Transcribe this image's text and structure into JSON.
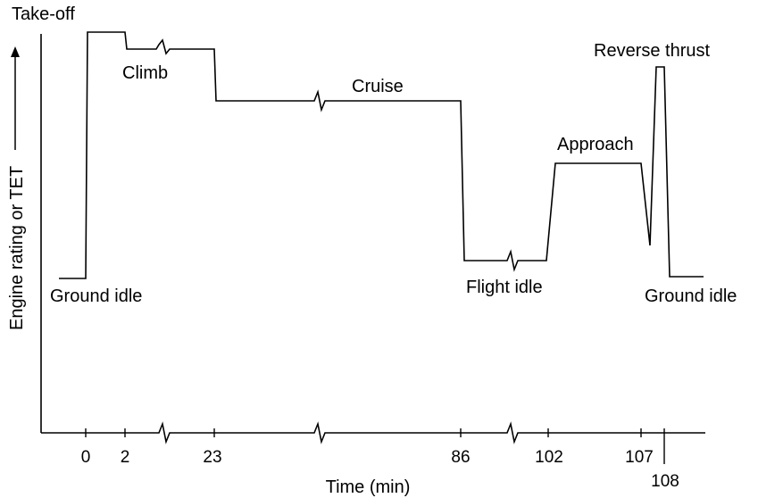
{
  "chart_data": {
    "type": "line",
    "title": "",
    "xlabel": "Time (min)",
    "ylabel": "Engine rating or TET",
    "x_ticks": [
      "0",
      "2",
      "23",
      "86",
      "102",
      "107",
      "108"
    ],
    "axis_breaks": "broken time axis between 2–23, 23–86 and 86–102",
    "phases": [
      {
        "name": "Take-off"
      },
      {
        "name": "Climb"
      },
      {
        "name": "Cruise"
      },
      {
        "name": "Flight idle"
      },
      {
        "name": "Approach"
      },
      {
        "name": "Reverse thrust"
      },
      {
        "name": "Ground idle (start)"
      },
      {
        "name": "Ground idle (end)"
      }
    ],
    "labels": {
      "takeoff": "Take-off",
      "climb": "Climb",
      "cruise": "Cruise",
      "flight_idle": "Flight idle",
      "approach": "Approach",
      "reverse_thrust": "Reverse thrust",
      "ground_idle_start": "Ground idle",
      "ground_idle_end": "Ground idle"
    },
    "grid": false,
    "legend": "none"
  }
}
